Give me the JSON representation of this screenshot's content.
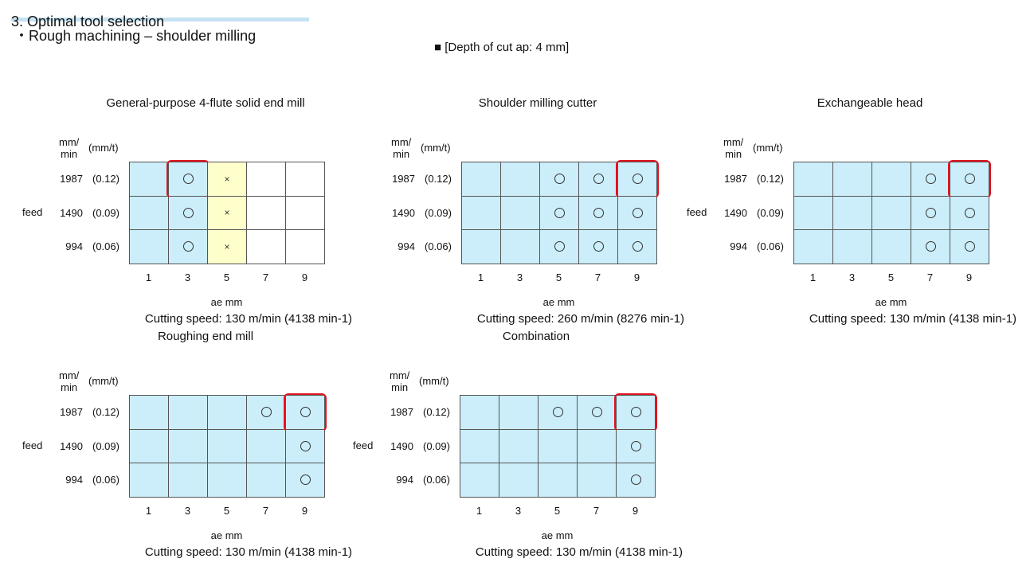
{
  "heading": "3. Optimal tool selection",
  "subheading": "・Rough machining – shoulder milling",
  "depth_label": "■ [Depth of cut ap: 4 mm]",
  "colors": {
    "feasible": "#cbeefa",
    "marginal": "#ffffcc",
    "not_tested": "#ffffff",
    "optimal_highlight": "#e0141e",
    "title_bar": "#c5e3f3"
  },
  "axis": {
    "units_feed": "mm/\nmin",
    "units_fz": "(mm/t)",
    "feed_label": "feed",
    "rows": [
      {
        "feed": "1987",
        "fz": "(0.12)"
      },
      {
        "feed": "1490",
        "fz": "(0.09)"
      },
      {
        "feed": "994",
        "fz": "(0.06)"
      }
    ],
    "cols": [
      "1",
      "3",
      "5",
      "7",
      "9"
    ],
    "ae_label": "ae mm"
  },
  "legend_marks": {
    "o": "○ feasible",
    "x": "× not feasible"
  },
  "panels": [
    {
      "title": "General-purpose 4-flute solid end mill",
      "speed": "Cutting speed: 130 m/min (4138 min-1)",
      "show_feed": true,
      "fill": [
        [
          "b",
          "b",
          "y",
          "w",
          "w"
        ],
        [
          "b",
          "b",
          "y",
          "w",
          "w"
        ],
        [
          "b",
          "b",
          "y",
          "w",
          "w"
        ]
      ],
      "marks": [
        [
          "",
          "o",
          "x",
          "",
          ""
        ],
        [
          "",
          "o",
          "x",
          "",
          ""
        ],
        [
          "",
          "o",
          "x",
          "",
          ""
        ]
      ],
      "optimal": [
        0,
        1
      ]
    },
    {
      "title": "Shoulder milling cutter",
      "speed": "Cutting speed: 260 m/min (8276 min-1)",
      "show_feed": false,
      "fill": [
        [
          "b",
          "b",
          "b",
          "b",
          "b"
        ],
        [
          "b",
          "b",
          "b",
          "b",
          "b"
        ],
        [
          "b",
          "b",
          "b",
          "b",
          "b"
        ]
      ],
      "marks": [
        [
          "",
          "",
          "o",
          "o",
          "o"
        ],
        [
          "",
          "",
          "o",
          "o",
          "o"
        ],
        [
          "",
          "",
          "o",
          "o",
          "o"
        ]
      ],
      "optimal": [
        0,
        4
      ]
    },
    {
      "title": "Exchangeable head",
      "speed": "Cutting speed: 130 m/min (4138 min-1)",
      "show_feed": true,
      "fill": [
        [
          "b",
          "b",
          "b",
          "b",
          "b"
        ],
        [
          "b",
          "b",
          "b",
          "b",
          "b"
        ],
        [
          "b",
          "b",
          "b",
          "b",
          "b"
        ]
      ],
      "marks": [
        [
          "",
          "",
          "",
          "o",
          "o"
        ],
        [
          "",
          "",
          "",
          "o",
          "o"
        ],
        [
          "",
          "",
          "",
          "o",
          "o"
        ]
      ],
      "optimal": [
        0,
        4
      ]
    },
    {
      "title": "Roughing end mill",
      "speed": "Cutting speed: 130 m/min (4138 min-1)",
      "show_feed": true,
      "fill": [
        [
          "b",
          "b",
          "b",
          "b",
          "b"
        ],
        [
          "b",
          "b",
          "b",
          "b",
          "b"
        ],
        [
          "b",
          "b",
          "b",
          "b",
          "b"
        ]
      ],
      "marks": [
        [
          "",
          "",
          "",
          "o",
          "o"
        ],
        [
          "",
          "",
          "",
          "",
          "o"
        ],
        [
          "",
          "",
          "",
          "",
          "o"
        ]
      ],
      "optimal": [
        0,
        4
      ]
    },
    {
      "title": "Combination",
      "speed": "Cutting speed: 130 m/min (4138 min-1)",
      "show_feed": true,
      "fill": [
        [
          "b",
          "b",
          "b",
          "b",
          "b"
        ],
        [
          "b",
          "b",
          "b",
          "b",
          "b"
        ],
        [
          "b",
          "b",
          "b",
          "b",
          "b"
        ]
      ],
      "marks": [
        [
          "",
          "",
          "o",
          "o",
          "o"
        ],
        [
          "",
          "",
          "",
          "",
          "o"
        ],
        [
          "",
          "",
          "",
          "",
          "o"
        ]
      ],
      "optimal": [
        0,
        4
      ]
    }
  ]
}
